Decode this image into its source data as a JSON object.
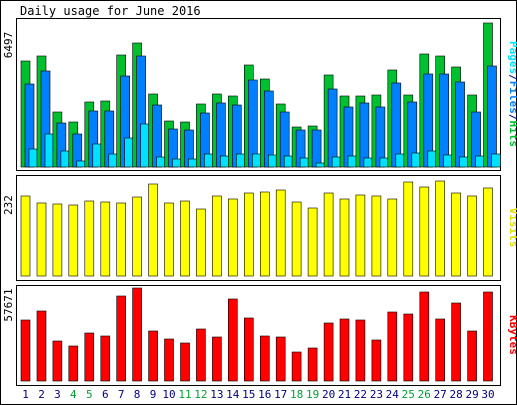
{
  "title": "Daily usage for June 2016",
  "colors": {
    "hits": "#00c030",
    "files": "#0080ff",
    "pages": "#00e0ff",
    "visits": "#ffff00",
    "kbytes": "#ff0000",
    "weekend_day": "#00a030",
    "weekday_day": "#000080",
    "bg": "#ffffff",
    "frame": "#000000"
  },
  "chart_data": [
    {
      "type": "bar",
      "panel": "hits-files-pages",
      "scale_max_label": "6497",
      "ymax": 6497,
      "ylim": [
        0,
        6497
      ],
      "legend_placement": "right",
      "legend": [
        {
          "name": "Pages",
          "color": "#00e0ff"
        },
        {
          "name": "Files",
          "color": "#0080ff"
        },
        {
          "name": "Hits",
          "color": "#00c030"
        }
      ],
      "legend_sep": "/",
      "categories": [
        "1",
        "2",
        "3",
        "4",
        "5",
        "6",
        "7",
        "8",
        "9",
        "10",
        "11",
        "12",
        "13",
        "14",
        "15",
        "16",
        "17",
        "18",
        "19",
        "20",
        "21",
        "22",
        "23",
        "24",
        "25",
        "26",
        "27",
        "28",
        "29",
        "30"
      ],
      "series": [
        {
          "name": "Hits",
          "values": [
            4700,
            4930,
            2440,
            2010,
            2900,
            2920,
            5000,
            5520,
            3230,
            2030,
            1990,
            2820,
            3250,
            3160,
            4560,
            3920,
            2810,
            1790,
            1830,
            4100,
            3180,
            3170,
            3210,
            4320,
            3220,
            5040,
            4960,
            4430,
            3210,
            6390
          ]
        },
        {
          "name": "Files",
          "values": [
            3710,
            4290,
            1980,
            1460,
            2480,
            2470,
            4060,
            4960,
            2760,
            1680,
            1630,
            2390,
            2860,
            2760,
            3880,
            3380,
            2450,
            1630,
            1640,
            3490,
            2650,
            2840,
            2680,
            3730,
            2910,
            4140,
            4140,
            3790,
            2460,
            4480
          ]
        },
        {
          "name": "Pages",
          "values": [
            790,
            1450,
            720,
            260,
            1040,
            600,
            1290,
            1930,
            450,
            350,
            340,
            590,
            480,
            600,
            570,
            520,
            490,
            400,
            170,
            460,
            490,
            390,
            380,
            600,
            610,
            700,
            550,
            440,
            500,
            590
          ]
        }
      ]
    },
    {
      "type": "bar",
      "panel": "visits",
      "scale_max_label": "232",
      "ymax": 232,
      "ylim": [
        0,
        232
      ],
      "legend_placement": "right",
      "legend": [
        {
          "name": "Visits",
          "color": "#ffff00"
        }
      ],
      "categories": [
        "1",
        "2",
        "3",
        "4",
        "5",
        "6",
        "7",
        "8",
        "9",
        "10",
        "11",
        "12",
        "13",
        "14",
        "15",
        "16",
        "17",
        "18",
        "19",
        "20",
        "21",
        "22",
        "23",
        "24",
        "25",
        "26",
        "27",
        "28",
        "29",
        "30"
      ],
      "series": [
        {
          "name": "Visits",
          "values": [
            193,
            176,
            173,
            171,
            181,
            179,
            176,
            190,
            222,
            176,
            182,
            163,
            193,
            187,
            201,
            204,
            209,
            180,
            164,
            200,
            187,
            195,
            194,
            186,
            226,
            215,
            230,
            200,
            193,
            213
          ]
        }
      ]
    },
    {
      "type": "bar",
      "panel": "kbytes",
      "scale_max_label": "57671",
      "ymax": 57671,
      "ylim": [
        0,
        57671
      ],
      "legend_placement": "right",
      "legend": [
        {
          "name": "KBytes",
          "color": "#ff0000"
        }
      ],
      "categories": [
        "1",
        "2",
        "3",
        "4",
        "5",
        "6",
        "7",
        "8",
        "9",
        "10",
        "11",
        "12",
        "13",
        "14",
        "15",
        "16",
        "17",
        "18",
        "19",
        "20",
        "21",
        "22",
        "23",
        "24",
        "25",
        "26",
        "27",
        "28",
        "29",
        "30"
      ],
      "weekend_days": [
        "4",
        "5",
        "11",
        "12",
        "18",
        "19",
        "25",
        "26"
      ],
      "series": [
        {
          "name": "KBytes",
          "values": [
            37400,
            42700,
            24800,
            21400,
            29500,
            27400,
            52100,
            57000,
            30700,
            25900,
            23500,
            31800,
            27200,
            50400,
            38900,
            27900,
            27100,
            17600,
            20500,
            35500,
            38100,
            37300,
            25400,
            42500,
            41300,
            54800,
            38300,
            47900,
            30900,
            54600
          ]
        }
      ]
    }
  ]
}
